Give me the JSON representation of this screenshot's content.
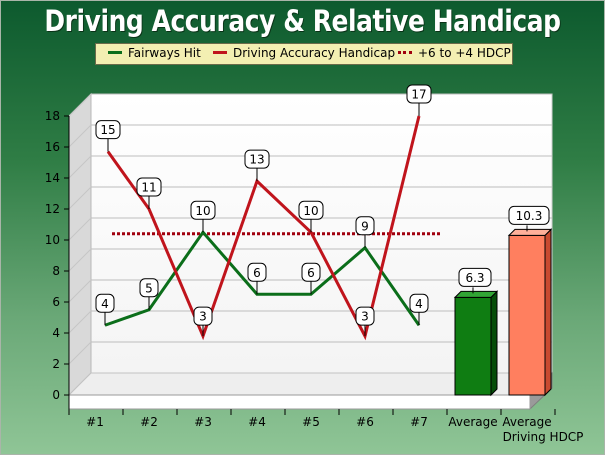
{
  "colors": {
    "fairways": "#0b6e1a",
    "handicap": "#c0141c",
    "target": "#a0000e",
    "avg_fairways": "#0f7d12",
    "avg_handicap": "#ff7f5f"
  },
  "chart_data": {
    "type": "line",
    "title": "Driving Accuracy & Relative Handicap",
    "categories": [
      "#1",
      "#2",
      "#3",
      "#4",
      "#5",
      "#6",
      "#7"
    ],
    "series": [
      {
        "name": "Fairways Hit",
        "values": [
          4,
          5,
          10,
          6,
          6,
          9,
          4
        ],
        "plot_values": [
          4.5,
          5.5,
          10.5,
          6.5,
          6.5,
          9.5,
          4.5
        ]
      },
      {
        "name": "Driving Accuracy Handicap",
        "values": [
          15,
          11,
          3,
          13,
          10,
          3,
          17
        ],
        "plot_values": [
          15.7,
          12,
          3.8,
          13.8,
          10.5,
          3.8,
          18
        ]
      },
      {
        "name": "+6 to +4 HDCP",
        "style": "dotted",
        "y": 10.4
      }
    ],
    "bars": [
      {
        "category": "Average",
        "value": 6.3,
        "label": "6.3"
      },
      {
        "category": "Average Driving HDCP",
        "value": 10.3,
        "label": "10.3"
      }
    ],
    "bar_tick_lines": [
      [
        "Average"
      ],
      [
        "Average",
        "Driving HDCP"
      ]
    ],
    "ylim": [
      0,
      18
    ],
    "yticks": [
      0,
      2,
      4,
      6,
      8,
      10,
      12,
      14,
      16,
      18
    ],
    "grid": true,
    "legend_position": "top"
  }
}
